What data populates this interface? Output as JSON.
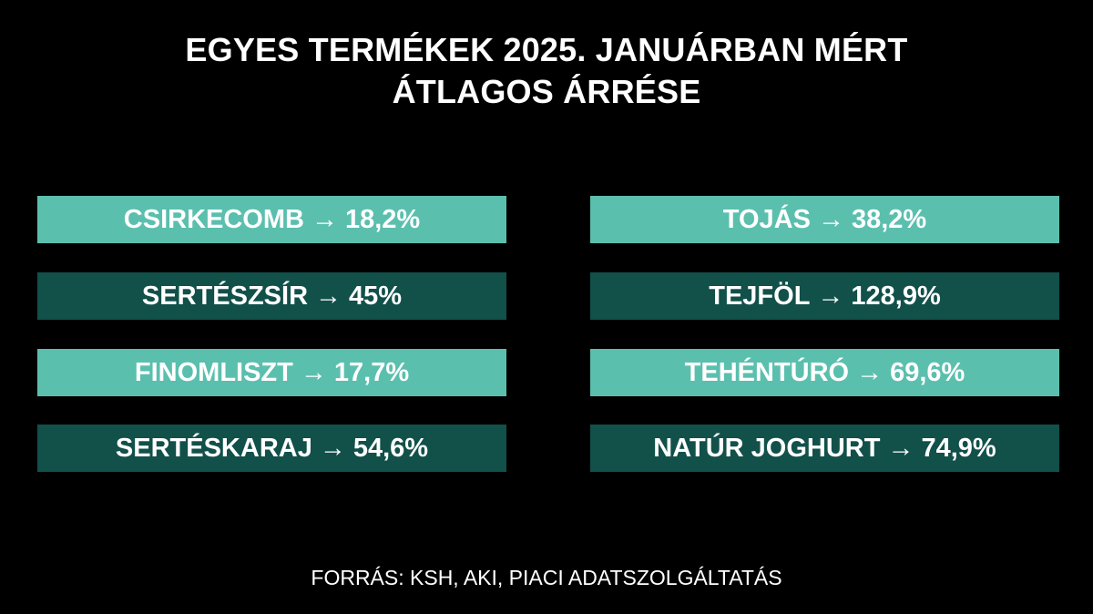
{
  "title": {
    "line1": "EGYES TERMÉKEK 2025. JANUÁRBAN MÉRT",
    "line2": "ÁTLAGOS ÁRRÉSE"
  },
  "arrow": "→",
  "items_left": [
    {
      "product": "CSIRKECOMB",
      "value": "18,2%",
      "style": "light"
    },
    {
      "product": "SERTÉSZSÍR",
      "value": "45%",
      "style": "dark"
    },
    {
      "product": "FINOMLISZT",
      "value": "17,7%",
      "style": "light"
    },
    {
      "product": "SERTÉSKARAJ",
      "value": "54,6%",
      "style": "dark"
    }
  ],
  "items_right": [
    {
      "product": "TOJÁS",
      "value": "38,2%",
      "style": "light"
    },
    {
      "product": "TEJFÖL",
      "value": "128,9%",
      "style": "dark"
    },
    {
      "product": "TEHÉNTÚRÓ",
      "value": "69,6%",
      "style": "light"
    },
    {
      "product": "NATÚR JOGHURT",
      "value": "74,9%",
      "style": "dark"
    }
  ],
  "source": "FORRÁS: KSH, AKI, PIACI ADATSZOLGÁLTATÁS",
  "colors": {
    "background": "#000000",
    "light_box": "#5bbfae",
    "dark_box": "#12504a",
    "text": "#ffffff"
  }
}
